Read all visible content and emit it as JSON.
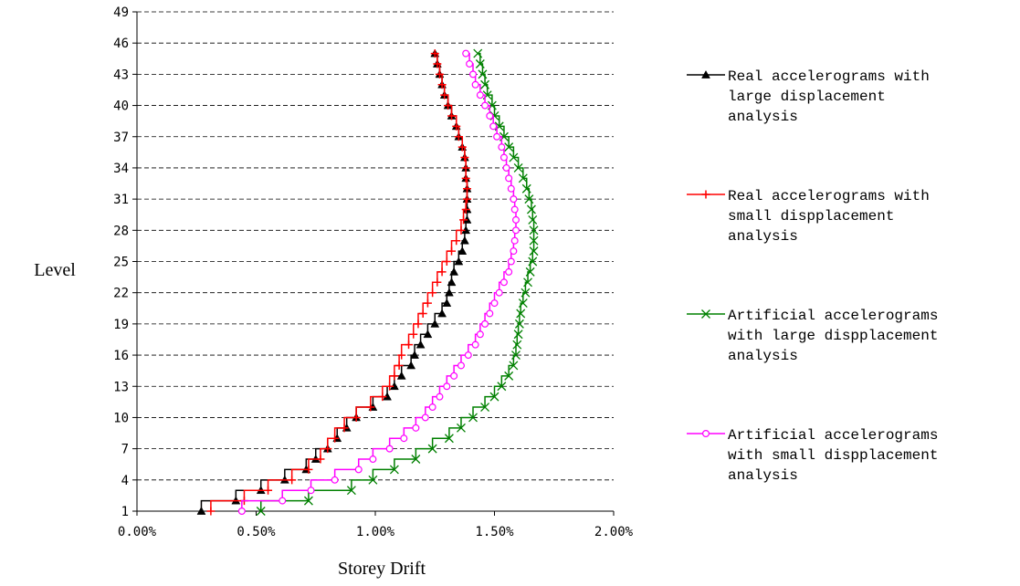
{
  "chart_data": {
    "type": "line",
    "title": "",
    "xlabel": "Storey Drift",
    "ylabel": "Level",
    "xlim": [
      0,
      0.02
    ],
    "ylim": [
      1,
      49
    ],
    "x_ticks": [
      "0.00%",
      "0.50%",
      "1.00%",
      "1.50%",
      "2.00%"
    ],
    "y_ticks": [
      "1",
      "4",
      "7",
      "10",
      "13",
      "16",
      "19",
      "22",
      "25",
      "28",
      "31",
      "34",
      "37",
      "40",
      "43",
      "46",
      "49"
    ],
    "grid": "horizontal dashed",
    "legend_position": "right",
    "series": [
      {
        "name": "Real accelerograms with large displacement analysis",
        "legend_lines": [
          "Real accelerograms with",
          "large displacement",
          "analysis"
        ],
        "color": "#000000",
        "marker": "triangle",
        "points": [
          [
            0.0027,
            1
          ],
          [
            0.00415,
            2
          ],
          [
            0.0052,
            3
          ],
          [
            0.0062,
            4
          ],
          [
            0.0071,
            5
          ],
          [
            0.0075,
            6
          ],
          [
            0.008,
            7
          ],
          [
            0.0084,
            8
          ],
          [
            0.0088,
            9
          ],
          [
            0.0092,
            10
          ],
          [
            0.0099,
            11
          ],
          [
            0.0105,
            12
          ],
          [
            0.0108,
            13
          ],
          [
            0.0111,
            14
          ],
          [
            0.0115,
            15
          ],
          [
            0.01165,
            16
          ],
          [
            0.0119,
            17
          ],
          [
            0.0122,
            18
          ],
          [
            0.0125,
            19
          ],
          [
            0.0128,
            20
          ],
          [
            0.013,
            21
          ],
          [
            0.0131,
            22
          ],
          [
            0.0132,
            23
          ],
          [
            0.0133,
            24
          ],
          [
            0.0135,
            25
          ],
          [
            0.01365,
            26
          ],
          [
            0.01375,
            27
          ],
          [
            0.0138,
            28
          ],
          [
            0.01385,
            29
          ],
          [
            0.01385,
            30
          ],
          [
            0.01385,
            31
          ],
          [
            0.01385,
            32
          ],
          [
            0.0138,
            33
          ],
          [
            0.0138,
            34
          ],
          [
            0.01375,
            35
          ],
          [
            0.01365,
            36
          ],
          [
            0.0135,
            37
          ],
          [
            0.0134,
            38
          ],
          [
            0.0132,
            39
          ],
          [
            0.01305,
            40
          ],
          [
            0.0129,
            41
          ],
          [
            0.0128,
            42
          ],
          [
            0.0127,
            43
          ],
          [
            0.0126,
            44
          ],
          [
            0.0125,
            45
          ]
        ]
      },
      {
        "name": "Real accelerograms with small dispplacement analysis",
        "legend_lines": [
          "Real accelerograms with",
          "small dispplacement",
          "analysis"
        ],
        "color": "#ff0000",
        "marker": "plus",
        "points": [
          [
            0.0031,
            1
          ],
          [
            0.0045,
            2
          ],
          [
            0.0055,
            3
          ],
          [
            0.0065,
            4
          ],
          [
            0.0072,
            5
          ],
          [
            0.0077,
            6
          ],
          [
            0.008,
            7
          ],
          [
            0.0083,
            8
          ],
          [
            0.0087,
            9
          ],
          [
            0.0092,
            10
          ],
          [
            0.0098,
            11
          ],
          [
            0.0103,
            12
          ],
          [
            0.0106,
            13
          ],
          [
            0.0108,
            14
          ],
          [
            0.011,
            15
          ],
          [
            0.0111,
            16
          ],
          [
            0.0114,
            17
          ],
          [
            0.0116,
            18
          ],
          [
            0.0118,
            19
          ],
          [
            0.012,
            20
          ],
          [
            0.0122,
            21
          ],
          [
            0.0124,
            22
          ],
          [
            0.0126,
            23
          ],
          [
            0.0128,
            24
          ],
          [
            0.013,
            25
          ],
          [
            0.0132,
            26
          ],
          [
            0.0134,
            27
          ],
          [
            0.0136,
            28
          ],
          [
            0.0137,
            29
          ],
          [
            0.0138,
            30
          ],
          [
            0.01385,
            31
          ],
          [
            0.01385,
            32
          ],
          [
            0.0138,
            33
          ],
          [
            0.0138,
            34
          ],
          [
            0.01375,
            35
          ],
          [
            0.01365,
            36
          ],
          [
            0.0135,
            37
          ],
          [
            0.0134,
            38
          ],
          [
            0.0132,
            39
          ],
          [
            0.01305,
            40
          ],
          [
            0.0129,
            41
          ],
          [
            0.0128,
            42
          ],
          [
            0.0127,
            43
          ],
          [
            0.0126,
            44
          ],
          [
            0.0125,
            45
          ]
        ]
      },
      {
        "name": "Artificial accelerograms with large dispplacement analysis",
        "legend_lines": [
          "Artificial accelerograms",
          "with large dispplacement",
          "analysis"
        ],
        "color": "#008000",
        "marker": "x",
        "points": [
          [
            0.0052,
            1
          ],
          [
            0.0072,
            2
          ],
          [
            0.009,
            3
          ],
          [
            0.0099,
            4
          ],
          [
            0.0108,
            5
          ],
          [
            0.0117,
            6
          ],
          [
            0.0124,
            7
          ],
          [
            0.0131,
            8
          ],
          [
            0.0136,
            9
          ],
          [
            0.0141,
            10
          ],
          [
            0.0146,
            11
          ],
          [
            0.015,
            12
          ],
          [
            0.0153,
            13
          ],
          [
            0.0156,
            14
          ],
          [
            0.0158,
            15
          ],
          [
            0.0159,
            16
          ],
          [
            0.01595,
            17
          ],
          [
            0.016,
            18
          ],
          [
            0.01605,
            19
          ],
          [
            0.0161,
            20
          ],
          [
            0.0162,
            21
          ],
          [
            0.0163,
            22
          ],
          [
            0.0164,
            23
          ],
          [
            0.0165,
            24
          ],
          [
            0.0166,
            25
          ],
          [
            0.01665,
            26
          ],
          [
            0.01665,
            27
          ],
          [
            0.01665,
            28
          ],
          [
            0.0166,
            29
          ],
          [
            0.01655,
            30
          ],
          [
            0.01645,
            31
          ],
          [
            0.01635,
            32
          ],
          [
            0.0162,
            33
          ],
          [
            0.016,
            34
          ],
          [
            0.0158,
            35
          ],
          [
            0.0156,
            36
          ],
          [
            0.0154,
            37
          ],
          [
            0.0152,
            38
          ],
          [
            0.015,
            39
          ],
          [
            0.0149,
            40
          ],
          [
            0.0147,
            41
          ],
          [
            0.0146,
            42
          ],
          [
            0.0145,
            43
          ],
          [
            0.0144,
            44
          ],
          [
            0.0143,
            45
          ]
        ]
      },
      {
        "name": "Artificial accelerograms with small dispplacement analysis",
        "legend_lines": [
          "Artificial accelerograms",
          "with small dispplacement",
          "analysis"
        ],
        "color": "#ff00ff",
        "marker": "circle",
        "points": [
          [
            0.0044,
            1
          ],
          [
            0.0061,
            2
          ],
          [
            0.0073,
            3
          ],
          [
            0.0083,
            4
          ],
          [
            0.0093,
            5
          ],
          [
            0.0099,
            6
          ],
          [
            0.0106,
            7
          ],
          [
            0.0112,
            8
          ],
          [
            0.0117,
            9
          ],
          [
            0.0121,
            10
          ],
          [
            0.0124,
            11
          ],
          [
            0.0127,
            12
          ],
          [
            0.013,
            13
          ],
          [
            0.0133,
            14
          ],
          [
            0.0136,
            15
          ],
          [
            0.0139,
            16
          ],
          [
            0.0142,
            17
          ],
          [
            0.0144,
            18
          ],
          [
            0.0146,
            19
          ],
          [
            0.0148,
            20
          ],
          [
            0.015,
            21
          ],
          [
            0.0152,
            22
          ],
          [
            0.0154,
            23
          ],
          [
            0.0156,
            24
          ],
          [
            0.0157,
            25
          ],
          [
            0.0158,
            26
          ],
          [
            0.01585,
            27
          ],
          [
            0.0159,
            28
          ],
          [
            0.0159,
            29
          ],
          [
            0.01585,
            30
          ],
          [
            0.0158,
            31
          ],
          [
            0.0157,
            32
          ],
          [
            0.0156,
            33
          ],
          [
            0.0155,
            34
          ],
          [
            0.0154,
            35
          ],
          [
            0.0153,
            36
          ],
          [
            0.0151,
            37
          ],
          [
            0.01495,
            38
          ],
          [
            0.0148,
            39
          ],
          [
            0.0146,
            40
          ],
          [
            0.0144,
            41
          ],
          [
            0.0142,
            42
          ],
          [
            0.0141,
            43
          ],
          [
            0.01395,
            44
          ],
          [
            0.0138,
            45
          ]
        ]
      }
    ]
  }
}
